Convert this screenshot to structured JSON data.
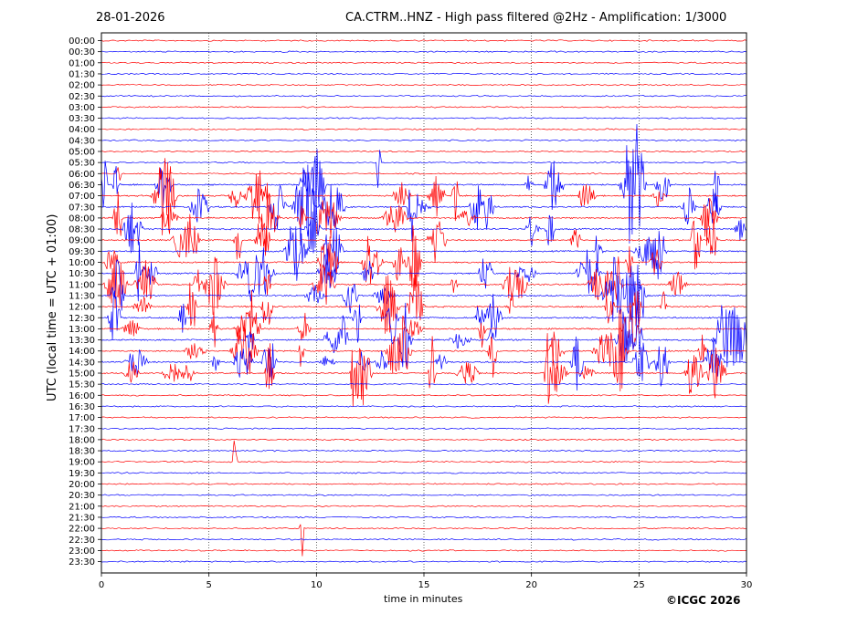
{
  "header": {
    "date": "28-01-2026",
    "title": "CA.CTRM..HNZ - High pass filtered @2Hz - Amplification: 1/3000"
  },
  "footer": {
    "copyright": "©ICGC 2026"
  },
  "colors": {
    "odd_trace": "#ff0000",
    "even_trace": "#0000ff",
    "grid": "#000000"
  },
  "chart_data": {
    "type": "line",
    "title": "CA.CTRM..HNZ - High pass filtered @2Hz - Amplification: 1/3000",
    "xlabel": "time in minutes",
    "ylabel": "UTC (local time = UTC + 01:00)",
    "xlim": [
      0,
      30
    ],
    "x_ticks": [
      0,
      5,
      10,
      15,
      20,
      25,
      30
    ],
    "y_tick_labels": [
      "00:00",
      "00:30",
      "01:00",
      "01:30",
      "02:00",
      "02:30",
      "03:00",
      "03:30",
      "04:00",
      "04:30",
      "05:00",
      "05:30",
      "06:00",
      "06:30",
      "07:00",
      "07:30",
      "08:00",
      "08:30",
      "09:00",
      "09:30",
      "10:00",
      "10:30",
      "11:00",
      "11:30",
      "12:00",
      "12:30",
      "13:00",
      "13:30",
      "14:00",
      "14:30",
      "15:00",
      "15:30",
      "16:00",
      "16:30",
      "17:00",
      "17:30",
      "18:00",
      "18:30",
      "19:00",
      "19:30",
      "20:00",
      "20:30",
      "21:00",
      "21:30",
      "22:00",
      "22:30",
      "23:00",
      "23:30"
    ],
    "vertical_grid": "dotted",
    "trace_color_pattern": [
      "red",
      "blue"
    ],
    "activity_window_utc": [
      "06:30",
      "15:00"
    ],
    "notable_spikes": [
      {
        "trace": "06:00",
        "minute": 0.8
      },
      {
        "trace": "19:00",
        "minute": 6.2
      },
      {
        "trace": "22:00",
        "minute": 9.3
      },
      {
        "trace": "05:30",
        "minute": 12.9
      },
      {
        "trace": "06:30",
        "minute": 26.1
      }
    ]
  }
}
